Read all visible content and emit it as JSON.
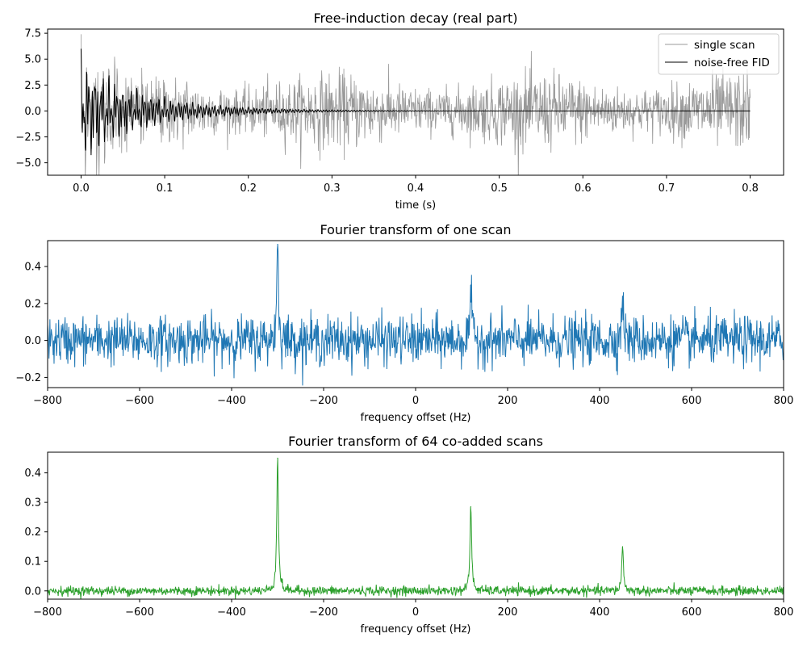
{
  "chart_data": [
    {
      "type": "line",
      "title": "Free-induction decay (real part)",
      "xlabel": "time (s)",
      "ylabel": "",
      "xlim": [
        -0.04,
        0.84
      ],
      "ylim": [
        -6.2,
        7.9
      ],
      "xticks": [
        0.0,
        0.1,
        0.2,
        0.3,
        0.4,
        0.5,
        0.6,
        0.7,
        0.8
      ],
      "xtick_labels": [
        "0.0",
        "0.1",
        "0.2",
        "0.3",
        "0.4",
        "0.5",
        "0.6",
        "0.7",
        "0.8"
      ],
      "yticks": [
        -5.0,
        -2.5,
        0.0,
        2.5,
        5.0,
        7.5
      ],
      "ytick_labels": [
        "−5.0",
        "−2.5",
        "0.0",
        "2.5",
        "5.0",
        "7.5"
      ],
      "grid": false,
      "legend": "upper-right",
      "series": [
        {
          "name": "single scan",
          "color": "#999999",
          "x_range": [
            0.0,
            0.8
          ],
          "n_points": 1600,
          "model": "noisy decaying multi-exponential oscillation",
          "noise_amplitude": 1.6
        },
        {
          "name": "noise-free FID",
          "color": "#000000",
          "x_range": [
            0.0,
            0.8
          ],
          "n_points": 1600,
          "start_value": 6.0,
          "components": [
            {
              "freq_hz": -300,
              "amp": 2.2,
              "t2_s": 0.09
            },
            {
              "freq_hz": 120,
              "amp": 1.9,
              "t2_s": 0.07
            },
            {
              "freq_hz": 450,
              "amp": 1.9,
              "t2_s": 0.05
            }
          ]
        }
      ]
    },
    {
      "type": "line",
      "title": "Fourier transform of one scan",
      "xlabel": "frequency offset (Hz)",
      "ylabel": "",
      "xlim": [
        -800,
        800
      ],
      "ylim": [
        -0.255,
        0.54
      ],
      "xticks": [
        -800,
        -600,
        -400,
        -200,
        0,
        200,
        400,
        600,
        800
      ],
      "xtick_labels": [
        "−800",
        "−600",
        "−400",
        "−200",
        "0",
        "200",
        "400",
        "600",
        "800"
      ],
      "yticks": [
        -0.2,
        0.0,
        0.2,
        0.4
      ],
      "ytick_labels": [
        "−0.2",
        "0.0",
        "0.2",
        "0.4"
      ],
      "grid": false,
      "series": [
        {
          "color": "#1f77b4",
          "x_range": [
            -800,
            800
          ],
          "n_points": 1600,
          "noise_sd": 0.065,
          "peaks": [
            {
              "x": -300,
              "height": 0.52
            },
            {
              "x": 120,
              "height": 0.3
            },
            {
              "x": 450,
              "height": 0.24
            }
          ]
        }
      ]
    },
    {
      "type": "line",
      "title": "Fourier transform of 64 co-added scans",
      "xlabel": "frequency offset (Hz)",
      "ylabel": "",
      "xlim": [
        -800,
        800
      ],
      "ylim": [
        -0.028,
        0.47
      ],
      "xticks": [
        -800,
        -600,
        -400,
        -200,
        0,
        200,
        400,
        600,
        800
      ],
      "xtick_labels": [
        "−800",
        "−600",
        "−400",
        "−200",
        "0",
        "200",
        "400",
        "600",
        "800"
      ],
      "yticks": [
        0.0,
        0.1,
        0.2,
        0.3,
        0.4
      ],
      "ytick_labels": [
        "0.0",
        "0.1",
        "0.2",
        "0.3",
        "0.4"
      ],
      "grid": false,
      "series": [
        {
          "color": "#2ca02c",
          "x_range": [
            -800,
            800
          ],
          "n_points": 1600,
          "noise_sd": 0.008,
          "peaks": [
            {
              "x": -300,
              "height": 0.45
            },
            {
              "x": 120,
              "height": 0.285
            },
            {
              "x": 450,
              "height": 0.15
            }
          ]
        }
      ]
    }
  ]
}
